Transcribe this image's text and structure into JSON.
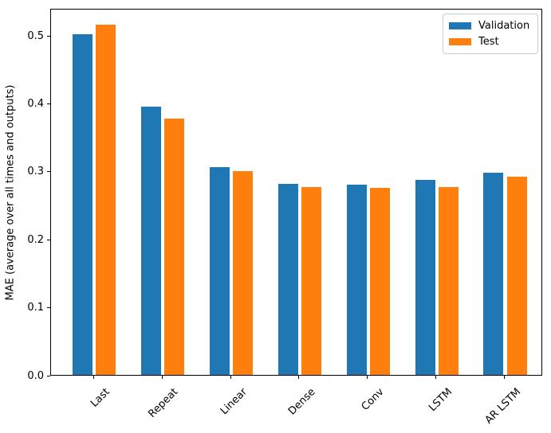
{
  "chart_data": {
    "type": "bar",
    "title": "",
    "xlabel": "",
    "ylabel": "MAE (average over all times and outputs)",
    "categories": [
      "Last",
      "Repeat",
      "Linear",
      "Dense",
      "Conv",
      "LSTM",
      "AR LSTM"
    ],
    "series": [
      {
        "name": "Validation",
        "color": "#1f77b4",
        "values": [
          0.501,
          0.395,
          0.306,
          0.281,
          0.28,
          0.287,
          0.298
        ]
      },
      {
        "name": "Test",
        "color": "#ff7f0e",
        "values": [
          0.515,
          0.377,
          0.3,
          0.276,
          0.275,
          0.277,
          0.292
        ]
      }
    ],
    "ylim": [
      0,
      0.54
    ],
    "yticks": [
      "0.0",
      "0.1",
      "0.2",
      "0.3",
      "0.4",
      "0.5"
    ],
    "x_tick_rotation": 45,
    "grid": false,
    "legend_position": "upper right",
    "axis_color": "#000000",
    "background_color": "#ffffff"
  }
}
